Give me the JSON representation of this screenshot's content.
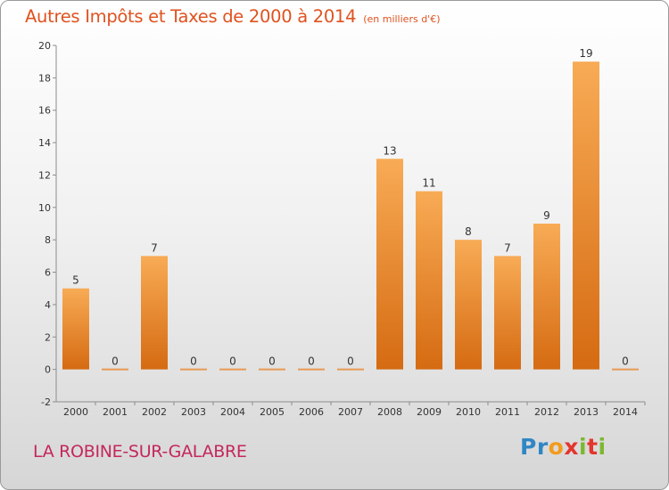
{
  "chart_data": {
    "type": "bar",
    "title": "Autres Impôts et Taxes de 2000 à 2014",
    "subtitle": "(en milliers d'€)",
    "categories": [
      "2000",
      "2001",
      "2002",
      "2003",
      "2004",
      "2005",
      "2006",
      "2007",
      "2008",
      "2009",
      "2010",
      "2011",
      "2012",
      "2013",
      "2014"
    ],
    "values": [
      5,
      0,
      7,
      0,
      0,
      0,
      0,
      0,
      13,
      11,
      8,
      7,
      9,
      19,
      0
    ],
    "ylim": [
      -2,
      20
    ],
    "yticks": [
      -2,
      0,
      2,
      4,
      6,
      8,
      10,
      12,
      14,
      16,
      18,
      20
    ],
    "grid": false,
    "bar_color": "#f08a2a"
  },
  "footer": {
    "commune": "LA ROBINE-SUR-GALABRE"
  },
  "logo": {
    "text": "Proxiti"
  }
}
